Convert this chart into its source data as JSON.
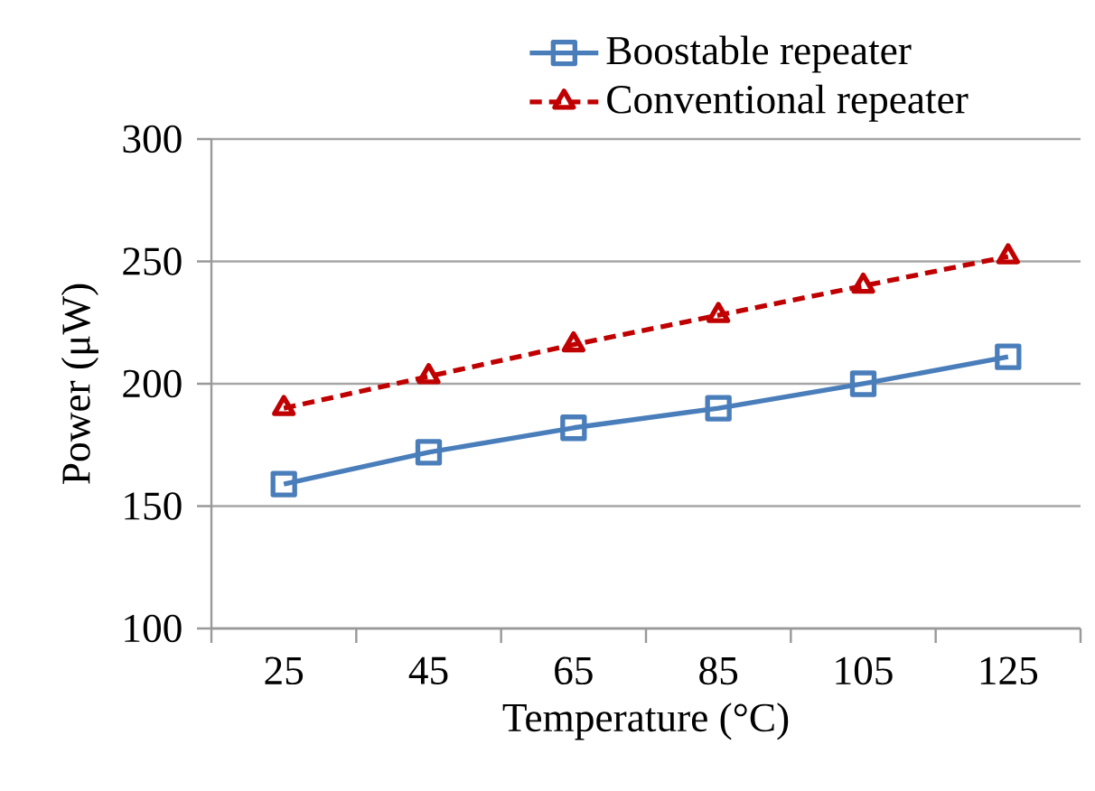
{
  "chart_data": {
    "type": "line",
    "xlabel": "Temperature (°C)",
    "ylabel": "Power (μW)",
    "categories": [
      "25",
      "45",
      "65",
      "85",
      "105",
      "125"
    ],
    "series": [
      {
        "name": "Boostable repeater",
        "color": "#4a7ebb",
        "marker": "square",
        "line_style": "solid",
        "values": [
          159,
          172,
          182,
          190,
          200,
          211
        ]
      },
      {
        "name": "Conventional repeater",
        "color": "#c00000",
        "marker": "triangle",
        "line_style": "dashed",
        "values": [
          190,
          203,
          216,
          228,
          240,
          252
        ]
      }
    ],
    "ylim": [
      100,
      300
    ],
    "yticks": [
      100,
      150,
      200,
      250,
      300
    ],
    "grid": "y",
    "legend": "top"
  }
}
